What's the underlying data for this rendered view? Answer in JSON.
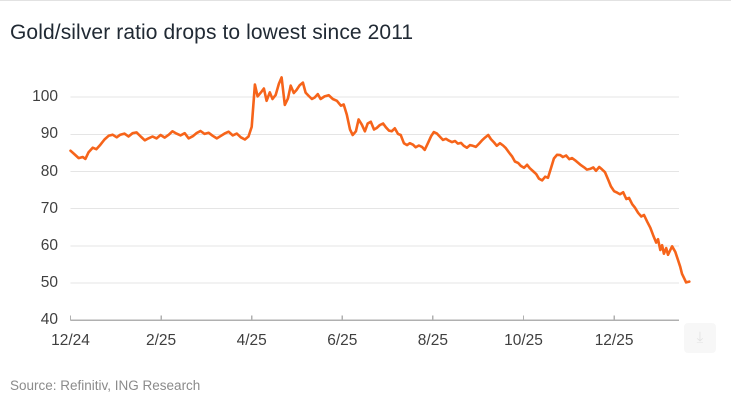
{
  "header": {
    "title": "Gold/silver ratio drops to lowest since 2011"
  },
  "footer": {
    "source": "Source: Refinitiv, ING Research"
  },
  "controls": {
    "chart_action_icon": "⤓"
  },
  "chart_data": {
    "type": "line",
    "title": "Gold/silver ratio drops to lowest since 2011",
    "xlabel": "",
    "ylabel": "",
    "legend": "none",
    "grid": "horizontal",
    "line_color": "#f6641a",
    "axis_color": "#b0b0b0",
    "grid_color": "#e5e5e5",
    "y_ticks": [
      40,
      50,
      60,
      70,
      80,
      90,
      100
    ],
    "ylim": [
      40,
      106.5
    ],
    "x_tick_labels": [
      "12/24",
      "2/25",
      "4/25",
      "6/25",
      "8/25",
      "10/25",
      "12/25"
    ],
    "x_tick_months": [
      0,
      2,
      4,
      6,
      8,
      10,
      12
    ],
    "x_domain_months": [
      0,
      13.66
    ],
    "series": [
      {
        "name": "Gold/silver ratio",
        "points": [
          [
            0,
            85.6
          ],
          [
            0.09,
            84.6
          ],
          [
            0.18,
            83.6
          ],
          [
            0.27,
            83.9
          ],
          [
            0.33,
            83.4
          ],
          [
            0.4,
            85.2
          ],
          [
            0.49,
            86.4
          ],
          [
            0.57,
            86.0
          ],
          [
            0.66,
            87.2
          ],
          [
            0.75,
            88.6
          ],
          [
            0.84,
            89.6
          ],
          [
            0.93,
            89.9
          ],
          [
            1.02,
            89.2
          ],
          [
            1.1,
            89.9
          ],
          [
            1.19,
            90.2
          ],
          [
            1.28,
            89.4
          ],
          [
            1.37,
            90.3
          ],
          [
            1.46,
            90.5
          ],
          [
            1.55,
            89.4
          ],
          [
            1.64,
            88.4
          ],
          [
            1.72,
            88.9
          ],
          [
            1.81,
            89.4
          ],
          [
            1.9,
            88.9
          ],
          [
            1.99,
            89.8
          ],
          [
            2.08,
            89.1
          ],
          [
            2.17,
            89.9
          ],
          [
            2.25,
            90.8
          ],
          [
            2.34,
            90.2
          ],
          [
            2.43,
            89.7
          ],
          [
            2.52,
            90.3
          ],
          [
            2.61,
            88.9
          ],
          [
            2.7,
            89.5
          ],
          [
            2.78,
            90.3
          ],
          [
            2.87,
            90.9
          ],
          [
            2.96,
            90.1
          ],
          [
            3.05,
            90.4
          ],
          [
            3.14,
            89.6
          ],
          [
            3.23,
            88.9
          ],
          [
            3.31,
            89.5
          ],
          [
            3.4,
            90.2
          ],
          [
            3.49,
            90.7
          ],
          [
            3.58,
            89.7
          ],
          [
            3.67,
            90.2
          ],
          [
            3.76,
            89.2
          ],
          [
            3.85,
            88.6
          ],
          [
            3.93,
            89.4
          ],
          [
            4.0,
            92.0
          ],
          [
            4.07,
            103.4
          ],
          [
            4.13,
            100.2
          ],
          [
            4.2,
            101.2
          ],
          [
            4.27,
            102.3
          ],
          [
            4.33,
            99.0
          ],
          [
            4.4,
            101.3
          ],
          [
            4.46,
            99.5
          ],
          [
            4.53,
            100.6
          ],
          [
            4.6,
            103.6
          ],
          [
            4.66,
            105.3
          ],
          [
            4.73,
            97.9
          ],
          [
            4.8,
            99.6
          ],
          [
            4.86,
            103.1
          ],
          [
            4.93,
            101.1
          ],
          [
            4.99,
            101.9
          ],
          [
            5.06,
            103.2
          ],
          [
            5.13,
            103.9
          ],
          [
            5.19,
            101.2
          ],
          [
            5.26,
            100.3
          ],
          [
            5.33,
            99.5
          ],
          [
            5.39,
            99.9
          ],
          [
            5.46,
            100.8
          ],
          [
            5.52,
            99.5
          ],
          [
            5.61,
            100.2
          ],
          [
            5.7,
            100.5
          ],
          [
            5.79,
            99.5
          ],
          [
            5.88,
            99.0
          ],
          [
            5.97,
            97.7
          ],
          [
            6.03,
            98.0
          ],
          [
            6.1,
            95.3
          ],
          [
            6.17,
            91.3
          ],
          [
            6.23,
            89.8
          ],
          [
            6.3,
            90.8
          ],
          [
            6.36,
            94.0
          ],
          [
            6.43,
            92.6
          ],
          [
            6.5,
            90.8
          ],
          [
            6.56,
            92.9
          ],
          [
            6.63,
            93.4
          ],
          [
            6.7,
            91.3
          ],
          [
            6.76,
            91.7
          ],
          [
            6.83,
            92.5
          ],
          [
            6.9,
            92.9
          ],
          [
            6.96,
            91.9
          ],
          [
            7.03,
            91.0
          ],
          [
            7.09,
            90.8
          ],
          [
            7.16,
            91.6
          ],
          [
            7.23,
            90.1
          ],
          [
            7.29,
            89.8
          ],
          [
            7.36,
            87.6
          ],
          [
            7.43,
            87.1
          ],
          [
            7.49,
            87.6
          ],
          [
            7.56,
            87.2
          ],
          [
            7.62,
            86.5
          ],
          [
            7.69,
            87.0
          ],
          [
            7.76,
            86.6
          ],
          [
            7.82,
            85.8
          ],
          [
            7.89,
            87.6
          ],
          [
            7.96,
            89.5
          ],
          [
            8.02,
            90.6
          ],
          [
            8.09,
            90.2
          ],
          [
            8.15,
            89.4
          ],
          [
            8.22,
            88.5
          ],
          [
            8.29,
            88.8
          ],
          [
            8.35,
            88.3
          ],
          [
            8.42,
            87.9
          ],
          [
            8.49,
            88.2
          ],
          [
            8.55,
            87.5
          ],
          [
            8.62,
            87.7
          ],
          [
            8.68,
            86.9
          ],
          [
            8.75,
            86.4
          ],
          [
            8.82,
            87.1
          ],
          [
            8.88,
            86.9
          ],
          [
            8.95,
            86.6
          ],
          [
            9.02,
            87.5
          ],
          [
            9.08,
            88.3
          ],
          [
            9.15,
            89.1
          ],
          [
            9.22,
            89.8
          ],
          [
            9.28,
            88.7
          ],
          [
            9.35,
            87.8
          ],
          [
            9.41,
            86.9
          ],
          [
            9.48,
            87.6
          ],
          [
            9.55,
            87.0
          ],
          [
            9.61,
            86.3
          ],
          [
            9.68,
            85.1
          ],
          [
            9.75,
            84.0
          ],
          [
            9.81,
            82.7
          ],
          [
            9.88,
            82.3
          ],
          [
            9.94,
            81.5
          ],
          [
            10.01,
            81.0
          ],
          [
            10.08,
            81.8
          ],
          [
            10.14,
            80.9
          ],
          [
            10.21,
            80.1
          ],
          [
            10.28,
            79.3
          ],
          [
            10.34,
            78.1
          ],
          [
            10.41,
            77.6
          ],
          [
            10.48,
            78.6
          ],
          [
            10.54,
            78.3
          ],
          [
            10.61,
            81.0
          ],
          [
            10.67,
            83.5
          ],
          [
            10.74,
            84.5
          ],
          [
            10.81,
            84.4
          ],
          [
            10.87,
            83.9
          ],
          [
            10.94,
            84.3
          ],
          [
            11.01,
            83.3
          ],
          [
            11.07,
            83.6
          ],
          [
            11.14,
            83.0
          ],
          [
            11.2,
            82.4
          ],
          [
            11.27,
            81.7
          ],
          [
            11.34,
            81.1
          ],
          [
            11.4,
            80.5
          ],
          [
            11.47,
            80.7
          ],
          [
            11.54,
            81.1
          ],
          [
            11.6,
            80.2
          ],
          [
            11.67,
            81.2
          ],
          [
            11.73,
            80.6
          ],
          [
            11.8,
            79.8
          ],
          [
            11.87,
            77.8
          ],
          [
            11.93,
            76.0
          ],
          [
            12.0,
            74.7
          ],
          [
            12.07,
            74.3
          ],
          [
            12.13,
            73.9
          ],
          [
            12.2,
            74.4
          ],
          [
            12.27,
            72.6
          ],
          [
            12.33,
            72.9
          ],
          [
            12.4,
            71.2
          ],
          [
            12.46,
            70.3
          ],
          [
            12.53,
            68.9
          ],
          [
            12.6,
            67.9
          ],
          [
            12.66,
            68.3
          ],
          [
            12.73,
            66.5
          ],
          [
            12.8,
            64.9
          ],
          [
            12.86,
            62.9
          ],
          [
            12.93,
            60.9
          ],
          [
            12.97,
            61.8
          ],
          [
            13.02,
            58.9
          ],
          [
            13.06,
            60.2
          ],
          [
            13.1,
            57.9
          ],
          [
            13.15,
            59.4
          ],
          [
            13.19,
            57.6
          ],
          [
            13.24,
            58.9
          ],
          [
            13.28,
            59.9
          ],
          [
            13.35,
            58.4
          ],
          [
            13.41,
            56.2
          ],
          [
            13.46,
            54.4
          ],
          [
            13.5,
            52.5
          ],
          [
            13.55,
            51.2
          ],
          [
            13.59,
            50.2
          ],
          [
            13.66,
            50.4
          ]
        ]
      }
    ]
  }
}
